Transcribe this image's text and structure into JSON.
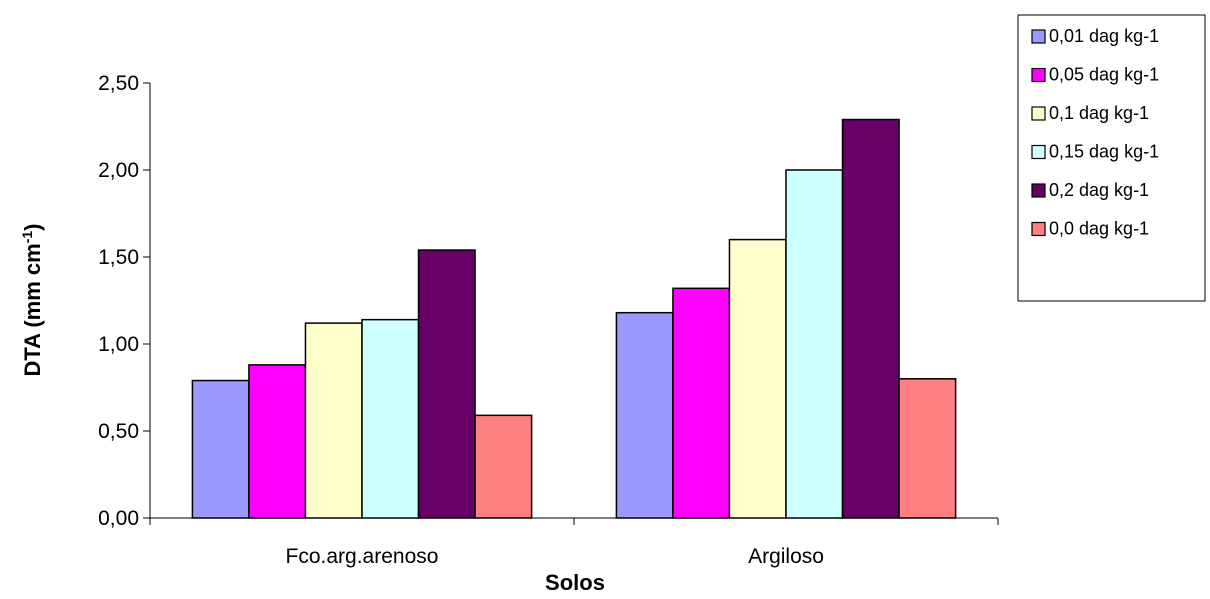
{
  "chart_data": {
    "type": "bar",
    "title": "",
    "xlabel": "Solos",
    "ylabel": "DTA (mm cm",
    "ylabel_sup": "-1",
    "ylabel_close": ")",
    "categories": [
      "Fco.arg.arenoso",
      "Argiloso"
    ],
    "series": [
      {
        "name": "0,01 dag kg-1",
        "color": "#9999ff",
        "values": [
          0.79,
          1.18
        ]
      },
      {
        "name": "0,05 dag kg-1",
        "color": "#ff00ff",
        "values": [
          0.88,
          1.32
        ]
      },
      {
        "name": "0,1 dag kg-1",
        "color": "#ffffcc",
        "values": [
          1.12,
          1.6
        ]
      },
      {
        "name": "0,15 dag kg-1",
        "color": "#ccffff",
        "values": [
          1.14,
          2.0
        ]
      },
      {
        "name": "0,2 dag kg-1",
        "color": "#660066",
        "values": [
          1.54,
          2.29
        ]
      },
      {
        "name": "0,0 dag kg-1",
        "color": "#ff8080",
        "values": [
          0.59,
          0.8
        ]
      }
    ],
    "ylim": [
      0,
      2.5
    ],
    "yticks": [
      0,
      0.5,
      1.0,
      1.5,
      2.0,
      2.5
    ],
    "ytick_labels": [
      "0,00",
      "0,50",
      "1,00",
      "1,50",
      "2,00",
      "2,50"
    ],
    "grid": false,
    "legend_position": "top-right"
  }
}
